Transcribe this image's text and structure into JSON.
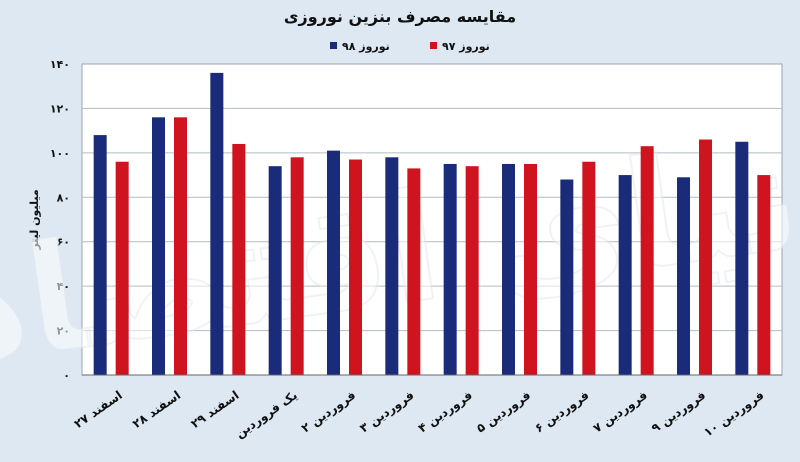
{
  "chart_data": {
    "type": "bar",
    "title": "مقایسه مصرف بنزین نوروزی",
    "ylabel": "میلیون لیتر",
    "xlabel": "",
    "ylim": [
      0,
      140
    ],
    "yticks": [
      0,
      20,
      40,
      60,
      80,
      100,
      120,
      140
    ],
    "ytick_labels": [
      "۰",
      "۲۰",
      "۴۰",
      "۶۰",
      "۸۰",
      "۱۰۰",
      "۱۲۰",
      "۱۴۰"
    ],
    "grid": true,
    "legend_position": "top",
    "categories": [
      "۲۷ اسفند",
      "۲۸ اسفند",
      "۲۹ اسفند",
      "یک فروردین",
      "۲ فروردین",
      "۳ فروردین",
      "۴ فروردین",
      "۵ فروردین",
      "۶ فروردین",
      "۷ فروردین",
      "۹ فروردین",
      "۱۰ فروردین"
    ],
    "series": [
      {
        "name": "نوروز ۹۸",
        "color": "#1a2b7a",
        "values": [
          108,
          116,
          136,
          94,
          101,
          98,
          95,
          95,
          88,
          90,
          89,
          105
        ]
      },
      {
        "name": "نوروز ۹۷",
        "color": "#d0141f",
        "values": [
          96,
          116,
          104,
          98,
          97,
          93,
          94,
          95,
          96,
          103,
          106,
          90
        ]
      }
    ],
    "watermark": "دنیای اقتصاد"
  }
}
